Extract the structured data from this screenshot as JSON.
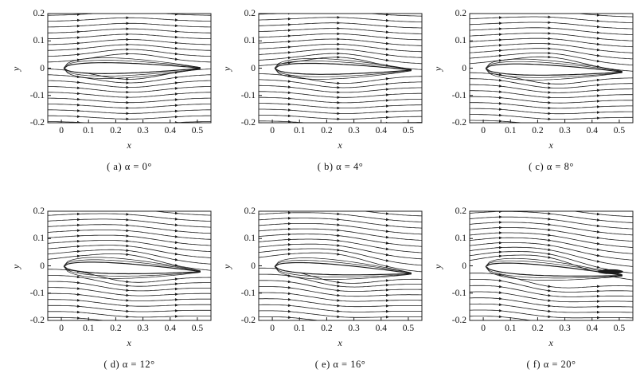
{
  "axes": {
    "x_label": "x",
    "y_label": "y",
    "x_ticks": [
      "0",
      "0.1",
      "0.2",
      "0.3",
      "0.4",
      "0.5"
    ],
    "y_ticks": [
      "0.2",
      "0.1",
      "0",
      "-0.1",
      "-0.2"
    ],
    "x_range": [
      -0.05,
      0.55
    ],
    "y_range": [
      -0.2,
      0.2
    ]
  },
  "panels": [
    {
      "caption": "( a)  α = 0°",
      "alpha_deg": 0
    },
    {
      "caption": "( b)  α = 4°",
      "alpha_deg": 4
    },
    {
      "caption": "( c)  α = 8°",
      "alpha_deg": 8
    },
    {
      "caption": "( d)  α = 12°",
      "alpha_deg": 12
    },
    {
      "caption": "( e)  α = 16°",
      "alpha_deg": 16
    },
    {
      "caption": "( f)  α = 20°",
      "alpha_deg": 20
    }
  ],
  "colors": {
    "line": "#1a1a1a",
    "frame": "#222222"
  }
}
